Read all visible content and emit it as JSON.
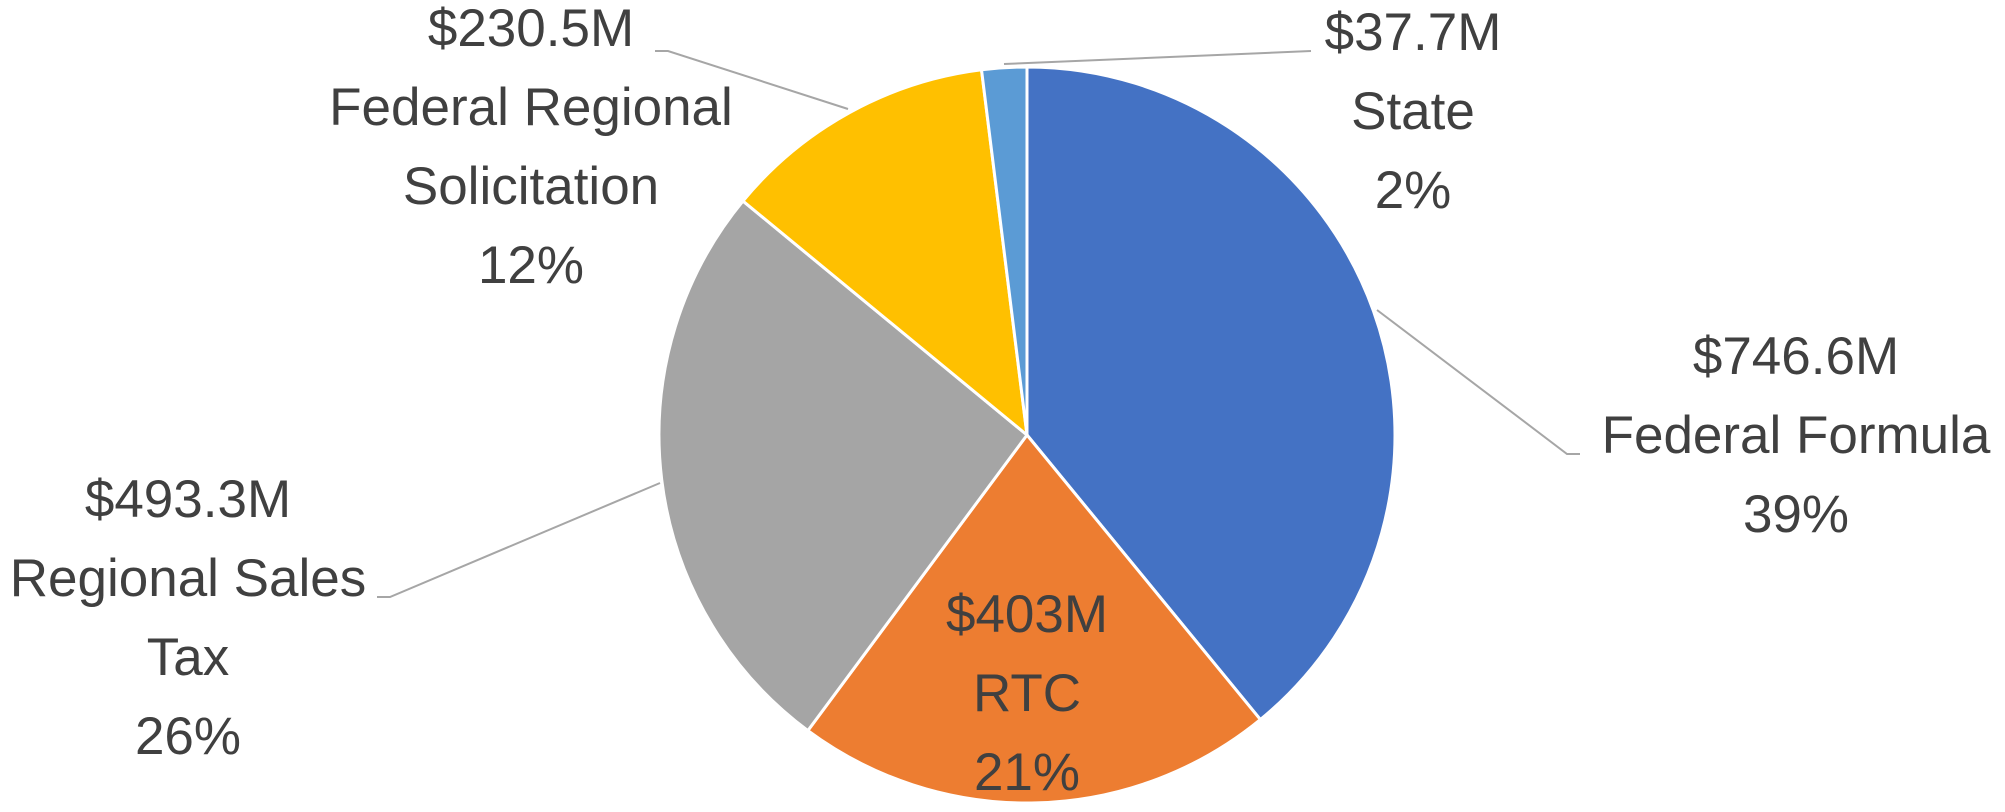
{
  "chart_data": {
    "type": "pie",
    "categories": [
      "Federal Formula",
      "RTC",
      "Regional Sales Tax",
      "Federal Regional Solicitation",
      "State"
    ],
    "values": [
      746.6,
      403,
      493.3,
      230.5,
      37.7
    ],
    "value_labels": [
      "$746.6M",
      "$403M",
      "$493.3M",
      "$230.5M",
      "$37.7M"
    ],
    "percent_labels": [
      "39%",
      "21%",
      "26%",
      "12%",
      "2%"
    ],
    "colors": [
      "#4472c4",
      "#ed7d31",
      "#a5a5a5",
      "#ffc000",
      "#5b9bd5"
    ]
  }
}
